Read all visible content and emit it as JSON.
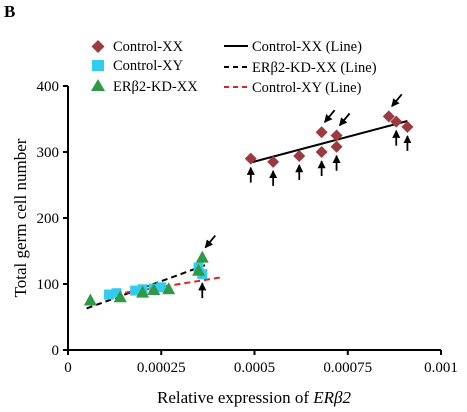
{
  "panel_label": "B",
  "chart_data": {
    "type": "scatter",
    "xlabel_prefix": "Relative expression of ",
    "xlabel_gene": "ERβ2",
    "ylabel": "Total germ cell number",
    "xlim": [
      0,
      0.001
    ],
    "ylim": [
      0,
      400
    ],
    "x_ticks": [
      0,
      0.00025,
      0.0005,
      0.00075,
      0.001
    ],
    "x_tick_labels": [
      "0",
      "0.00025",
      "0.0005",
      "0.00075",
      "0.001"
    ],
    "y_ticks": [
      0,
      100,
      200,
      300,
      400
    ],
    "y_tick_labels": [
      "0",
      "100",
      "200",
      "300",
      "400"
    ],
    "grid": false,
    "legend_position": "top",
    "series": [
      {
        "name": "Control-XX",
        "marker": "diamond",
        "color": "#9b3b40",
        "points": [
          [
            0.00049,
            290
          ],
          [
            0.00055,
            285
          ],
          [
            0.00062,
            294
          ],
          [
            0.00068,
            300
          ],
          [
            0.00068,
            330
          ],
          [
            0.00072,
            308
          ],
          [
            0.00072,
            325
          ],
          [
            0.00086,
            354
          ],
          [
            0.00088,
            346
          ],
          [
            0.00091,
            338
          ]
        ]
      },
      {
        "name": "Control-XY",
        "marker": "square",
        "color": "#33ccee",
        "points": [
          [
            0.00011,
            84
          ],
          [
            0.00013,
            86
          ],
          [
            0.00018,
            90
          ],
          [
            0.0002,
            92
          ],
          [
            0.00023,
            93
          ],
          [
            0.00025,
            95
          ],
          [
            0.00035,
            125
          ],
          [
            0.00036,
            115
          ]
        ]
      },
      {
        "name": "ERβ2-KD-XX",
        "marker": "triangle",
        "color": "#2f9a46",
        "points": [
          [
            6e-05,
            75
          ],
          [
            0.00014,
            80
          ],
          [
            0.0002,
            87
          ],
          [
            0.00023,
            91
          ],
          [
            0.00027,
            92
          ],
          [
            0.00035,
            120
          ],
          [
            0.00036,
            140
          ]
        ]
      }
    ],
    "trend_lines": [
      {
        "name": "Control-XX (Line)",
        "color": "#000000",
        "dash": "solid",
        "x": [
          0.00049,
          0.00091
        ],
        "y": [
          284,
          347
        ]
      },
      {
        "name": "ERβ2-KD-XX (Line)",
        "color": "#000000",
        "dash": "dashed",
        "x": [
          5e-05,
          0.00037
        ],
        "y": [
          63,
          129
        ]
      },
      {
        "name": "Control-XY (Line)",
        "color": "#e02020",
        "dash": "dashed",
        "x": [
          0.0001,
          0.00041
        ],
        "y": [
          82,
          110
        ]
      }
    ],
    "arrows": [
      {
        "dir": "up",
        "x": 0.00049,
        "y": 290
      },
      {
        "dir": "up",
        "x": 0.00055,
        "y": 285
      },
      {
        "dir": "up",
        "x": 0.00062,
        "y": 294
      },
      {
        "dir": "up",
        "x": 0.00068,
        "y": 300
      },
      {
        "dir": "up",
        "x": 0.00072,
        "y": 308
      },
      {
        "dir": "up",
        "x": 0.00088,
        "y": 346
      },
      {
        "dir": "up",
        "x": 0.00091,
        "y": 338
      },
      {
        "dir": "down",
        "x": 0.00068,
        "y": 330
      },
      {
        "dir": "down",
        "x": 0.00072,
        "y": 325
      },
      {
        "dir": "down",
        "x": 0.00086,
        "y": 354
      },
      {
        "dir": "down",
        "x": 0.00036,
        "y": 140
      },
      {
        "dir": "up",
        "x": 0.00036,
        "y": 115
      }
    ]
  }
}
